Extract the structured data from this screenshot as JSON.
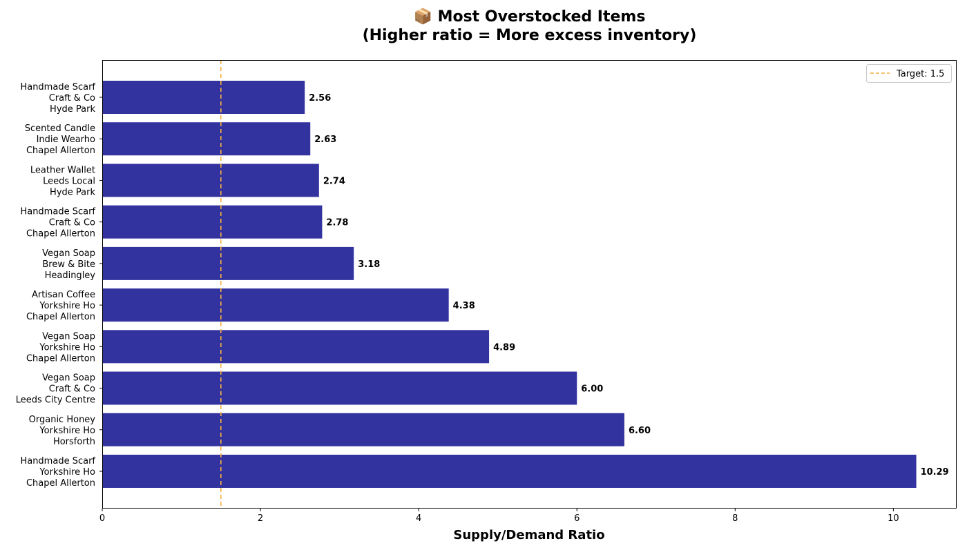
{
  "chart_data": {
    "type": "bar",
    "orientation": "horizontal",
    "title": "📦 Most Overstocked Items\n(Higher ratio = More excess inventory)",
    "xlabel": "Supply/Demand Ratio",
    "ylabel": "",
    "xlim": [
      0,
      10.8
    ],
    "xticks": [
      0,
      2,
      4,
      6,
      8,
      10
    ],
    "categories": [
      [
        "Handmade Scarf",
        "Craft & Co",
        "Hyde Park"
      ],
      [
        "Scented Candle",
        "Indie Wearho",
        "Chapel Allerton"
      ],
      [
        "Leather Wallet",
        "Leeds Local ",
        "Hyde Park"
      ],
      [
        "Handmade Scarf",
        "Craft & Co",
        "Chapel Allerton"
      ],
      [
        "Vegan Soap",
        "Brew & Bite",
        "Headingley"
      ],
      [
        "Artisan Coffee",
        "Yorkshire Ho",
        "Chapel Allerton"
      ],
      [
        "Vegan Soap",
        "Yorkshire Ho",
        "Chapel Allerton"
      ],
      [
        "Vegan Soap",
        "Craft & Co",
        "Leeds City Centre"
      ],
      [
        "Organic Honey",
        "Yorkshire Ho",
        "Horsforth"
      ],
      [
        "Handmade Scarf",
        "Yorkshire Ho",
        "Chapel Allerton"
      ]
    ],
    "values": [
      2.56,
      2.63,
      2.74,
      2.78,
      3.18,
      4.38,
      4.89,
      6.0,
      6.6,
      10.29
    ],
    "value_labels": [
      "2.56",
      "2.63",
      "2.74",
      "2.78",
      "3.18",
      "4.38",
      "4.89",
      "6.00",
      "6.60",
      "10.29"
    ],
    "bar_color": "#3333a0",
    "reference_line": {
      "value": 1.5,
      "label": "Target: 1.5",
      "color": "#f5b041",
      "style": "dashed"
    },
    "legend": {
      "position": "top-right",
      "entries": [
        "Target: 1.5"
      ]
    },
    "grid": false
  }
}
